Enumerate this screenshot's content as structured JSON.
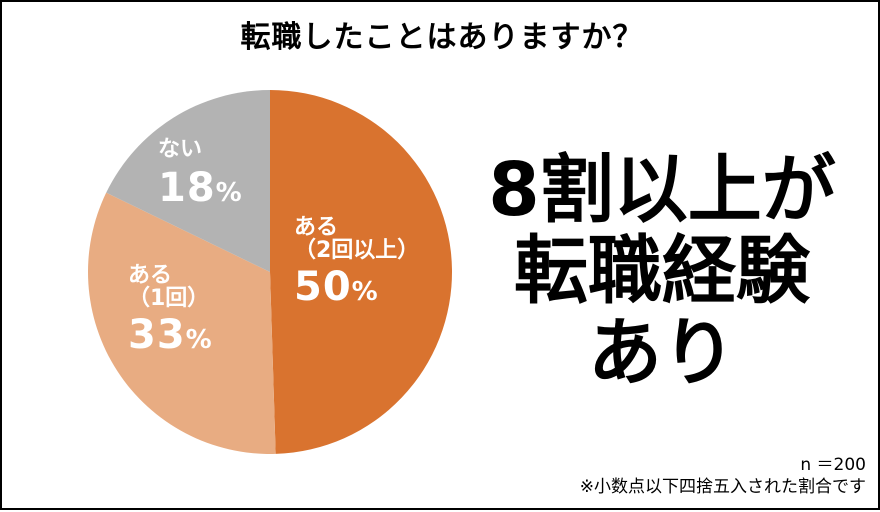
{
  "title": "転職したことはありますか？",
  "headline": [
    "8割以上が",
    "転職経験",
    "あり"
  ],
  "footnote": {
    "n": "n ＝200",
    "note": "※小数点以下四捨五入された割合です"
  },
  "colors": {
    "yes_2plus": "#d9732f",
    "yes_1": "#e8ac82",
    "no": "#b3b3b3",
    "label": "#ffffff"
  },
  "chart_data": {
    "type": "pie",
    "title": "転職したことはありますか？",
    "start": "12 o'clock",
    "direction": "clockwise",
    "slices": [
      {
        "name": "ある（2回以上）",
        "value": 50,
        "label_line1": "ある",
        "label_line2": "（2回以上）",
        "pct": "50",
        "unit": "%",
        "color": "#d9732f"
      },
      {
        "name": "ある（1回）",
        "value": 33,
        "label_line1": "ある",
        "label_line2": "（1回）",
        "pct": "33",
        "unit": "%",
        "color": "#e8ac82"
      },
      {
        "name": "ない",
        "value": 18,
        "label_line1": "ない",
        "label_line2": "",
        "pct": "18",
        "unit": "%",
        "color": "#b3b3b3"
      }
    ],
    "legend": "none"
  }
}
